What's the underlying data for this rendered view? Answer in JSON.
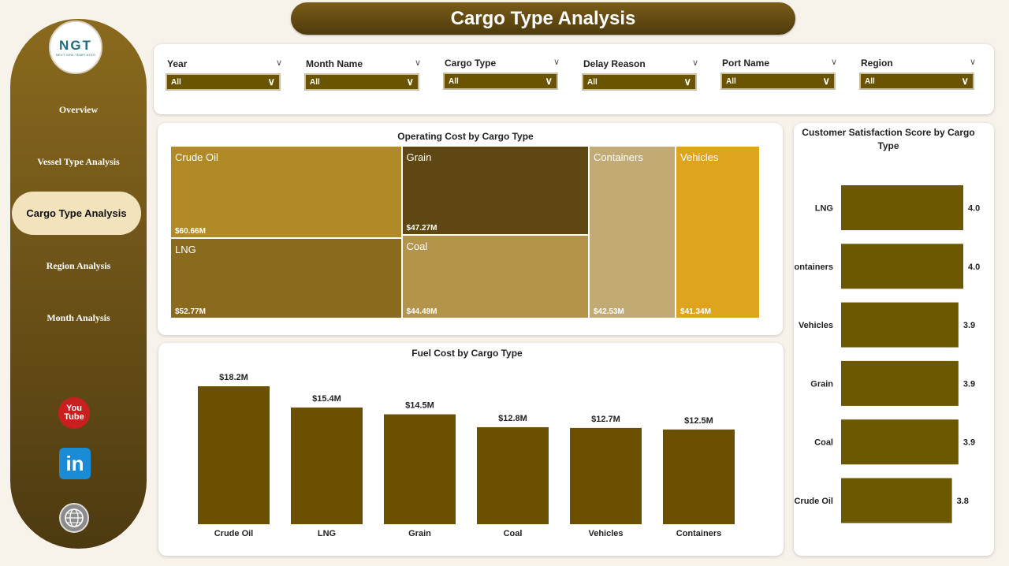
{
  "title": "Cargo Type Analysis",
  "logo": {
    "text": "NGT",
    "subtitle": "NEXT GEN TEMPLATES"
  },
  "nav": {
    "overview": "Overview",
    "vessel": "Vessel Type Analysis",
    "cargo": "Cargo Type Analysis",
    "region": "Region Analysis",
    "month": "Month Analysis"
  },
  "social": {
    "youtube": "You Tube",
    "linkedin": "in"
  },
  "filters": [
    {
      "label": "Year",
      "value": "All"
    },
    {
      "label": "Month Name",
      "value": "All"
    },
    {
      "label": "Cargo Type",
      "value": "All"
    },
    {
      "label": "Delay Reason",
      "value": "All"
    },
    {
      "label": "Port Name",
      "value": "All"
    },
    {
      "label": "Region",
      "value": "All"
    }
  ],
  "colors": {
    "accent": "#6b5400",
    "sidebar": "#7a5c18",
    "active_nav": "#f2e3bd"
  },
  "chart_data": [
    {
      "type": "treemap",
      "title": "Operating Cost by Cargo Type",
      "items": [
        {
          "name": "Crude Oil",
          "value": 60.66,
          "label": "$60.66M",
          "color": "#b08a26"
        },
        {
          "name": "LNG",
          "value": 52.77,
          "label": "$52.77M",
          "color": "#8a6a1c"
        },
        {
          "name": "Grain",
          "value": 47.27,
          "label": "$47.27M",
          "color": "#5e4712"
        },
        {
          "name": "Coal",
          "value": 44.49,
          "label": "$44.49M",
          "color": "#b3944a"
        },
        {
          "name": "Containers",
          "value": 42.53,
          "label": "$42.53M",
          "color": "#c2aa74"
        },
        {
          "name": "Vehicles",
          "value": 41.34,
          "label": "$41.34M",
          "color": "#dfa41e"
        }
      ]
    },
    {
      "type": "bar",
      "title": "Fuel Cost by Cargo Type",
      "categories": [
        "Crude Oil",
        "LNG",
        "Grain",
        "Coal",
        "Vehicles",
        "Containers"
      ],
      "values": [
        18.2,
        15.4,
        14.5,
        12.8,
        12.7,
        12.5
      ],
      "labels": [
        "$18.2M",
        "$15.4M",
        "$14.5M",
        "$12.8M",
        "$12.7M",
        "$12.5M"
      ],
      "color": "#6b5000"
    },
    {
      "type": "bar",
      "orientation": "horizontal",
      "title": "Customer Satisfaction Score by Cargo Type",
      "categories": [
        "LNG",
        "Containers",
        "Vehicles",
        "Grain",
        "Coal",
        "Crude Oil"
      ],
      "values": [
        4.0,
        4.0,
        3.9,
        3.9,
        3.9,
        3.8
      ],
      "labels": [
        "4.0",
        "4.0",
        "3.9",
        "3.9",
        "3.9",
        "3.8"
      ],
      "color": "#6b5800"
    }
  ]
}
